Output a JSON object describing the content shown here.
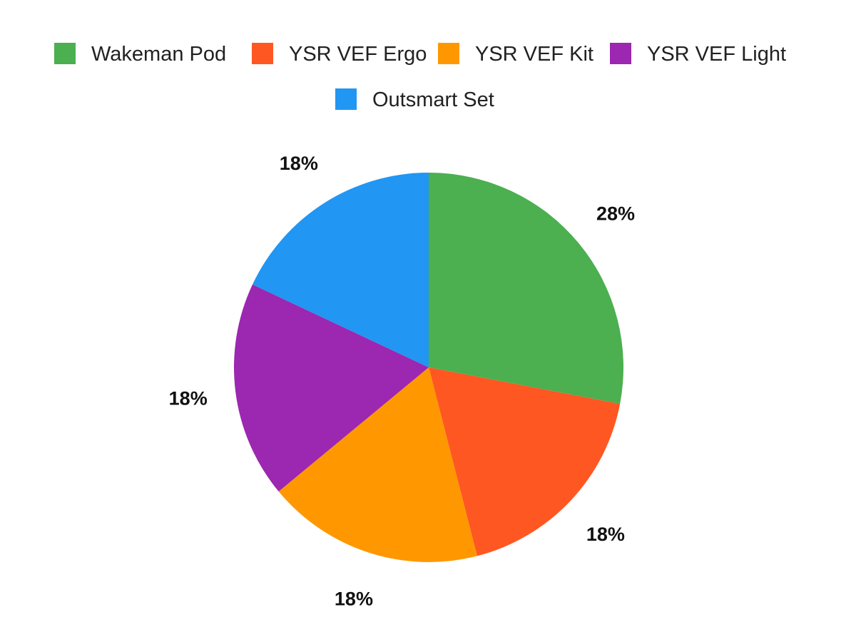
{
  "chart_data": {
    "type": "pie",
    "title": "",
    "legend_position": "top",
    "start_angle_note": "first slice starts at 12 o'clock, clockwise",
    "slices": [
      {
        "name": "Wakeman Pod",
        "value": 28,
        "label": "28%",
        "color": "#4CAF50"
      },
      {
        "name": "YSR VEF Ergo",
        "value": 18,
        "label": "18%",
        "color": "#FF5722"
      },
      {
        "name": "YSR VEF Kit",
        "value": 18,
        "label": "18%",
        "color": "#FF9800"
      },
      {
        "name": "YSR VEF Light",
        "value": 18,
        "label": "18%",
        "color": "#9C27B0"
      },
      {
        "name": "Outsmart Set",
        "value": 18,
        "label": "18%",
        "color": "#2196F3"
      }
    ]
  }
}
